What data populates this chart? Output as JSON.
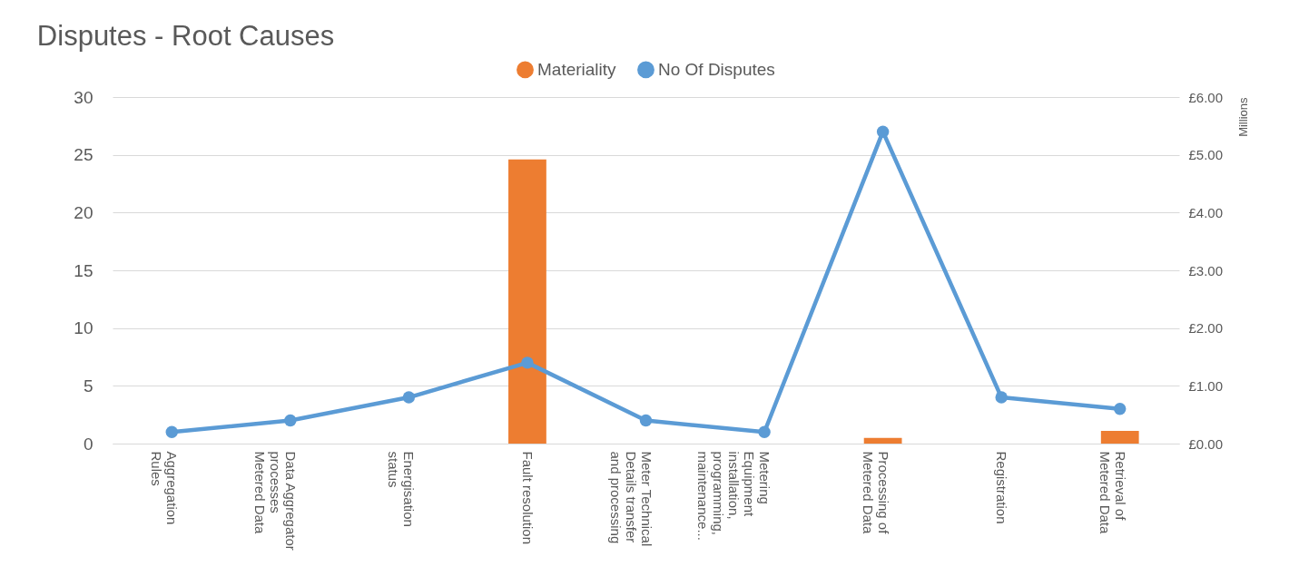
{
  "chart_data": {
    "type": "bar",
    "title": "Disputes - Root Causes",
    "y2label": "Millions",
    "categories": [
      "Aggregation Rules",
      "Data Aggregator processes Metered Data",
      "Energisation status",
      "Fault resolution",
      "Meter Technical Details transfer and processing",
      "Metering Equipment installation, programming, maintenance...",
      "Processing of Metered Data",
      "Registration",
      "Retrieval of Metered Data"
    ],
    "series": [
      {
        "name": "Materiality",
        "axis": "y2",
        "color": "#ed7d31",
        "values": [
          null,
          null,
          null,
          4.92,
          null,
          null,
          0.1,
          null,
          0.22
        ]
      },
      {
        "name": "No Of Disputes",
        "type": "line",
        "color": "#5b9bd5",
        "values": [
          1,
          2,
          4,
          7,
          2,
          1,
          27,
          4,
          3
        ]
      }
    ],
    "ylim": [
      0,
      30
    ],
    "yticks": [
      0,
      5,
      10,
      15,
      20,
      25,
      30
    ],
    "y2lim": [
      0,
      6
    ],
    "y2ticks": [
      {
        "value": 0,
        "label": "£0.00"
      },
      {
        "value": 1,
        "label": "£1.00"
      },
      {
        "value": 2,
        "label": "£2.00"
      },
      {
        "value": 3,
        "label": "£3.00"
      },
      {
        "value": 4,
        "label": "£4.00"
      },
      {
        "value": 5,
        "label": "£5.00"
      },
      {
        "value": 6,
        "label": "£6.00"
      }
    ],
    "grid": "y",
    "legend": "top",
    "marker": "circle"
  }
}
